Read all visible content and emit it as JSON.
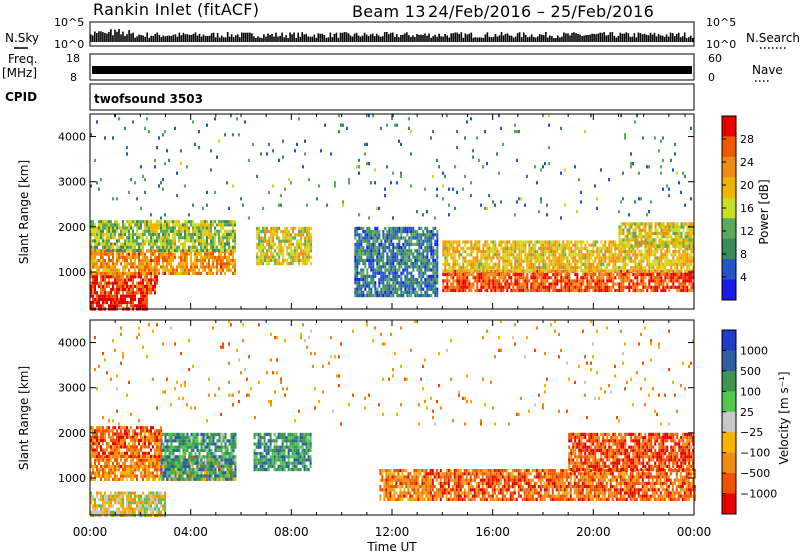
{
  "header": {
    "station": "Rankin Inlet (fitACF)",
    "beam": "Beam 13",
    "date_range": "24/Feb/2016 – 25/Feb/2016"
  },
  "strips": {
    "nsky_label": "N.Sky",
    "nsearch_label": "N.Search",
    "nsky_ticks": [
      "10^5",
      "10^0"
    ],
    "freq_label_1": "Freq.",
    "freq_label_2": "[MHz]",
    "nave_label": "Nave",
    "freq_ticks": [
      "18",
      "8"
    ],
    "nave_ticks": [
      "60",
      "0"
    ],
    "cpid_label": "CPID",
    "cpid_value": "twofsound 3503"
  },
  "chart_data": [
    {
      "type": "heatmap",
      "quantity": "Power",
      "colorbar_label": "Power [dB]",
      "colorbar_ticks": [
        "28",
        "24",
        "20",
        "16",
        "12",
        "8",
        "4"
      ],
      "colorbar_range": [
        0,
        32
      ],
      "colors": [
        "#1a1ae6",
        "#2255c8",
        "#3a8a5a",
        "#5aaa5a",
        "#c8dc28",
        "#f0b400",
        "#f08c14",
        "#ee5a00",
        "#e60000"
      ],
      "ylabel": "Slant Range [km]",
      "y_ticks": [
        "1000",
        "2000",
        "3000",
        "4000"
      ],
      "ylim": [
        180,
        4500
      ],
      "x_range_hours": [
        0,
        24
      ],
      "scatter_regions": [
        {
          "t": [
            0.0,
            2.7
          ],
          "r": [
            550,
            1000
          ],
          "level": 0.85
        },
        {
          "t": [
            0.0,
            5.8
          ],
          "r": [
            1000,
            1500
          ],
          "level": 0.72
        },
        {
          "t": [
            0.0,
            5.8
          ],
          "r": [
            1500,
            2150
          ],
          "level": 0.45
        },
        {
          "t": [
            6.6,
            8.8
          ],
          "r": [
            1200,
            2000
          ],
          "level": 0.55
        },
        {
          "t": [
            0.0,
            2.3
          ],
          "r": [
            180,
            500
          ],
          "level": 0.95
        },
        {
          "t": [
            10.5,
            13.8
          ],
          "r": [
            500,
            2000
          ],
          "level": 0.25
        },
        {
          "t": [
            14.0,
            24.0
          ],
          "r": [
            600,
            1050
          ],
          "level": 0.85
        },
        {
          "t": [
            14.0,
            24.0
          ],
          "r": [
            1050,
            1700
          ],
          "level": 0.6
        },
        {
          "t": [
            21.0,
            24.0
          ],
          "r": [
            1600,
            2100
          ],
          "level": 0.55
        },
        {
          "t": [
            0.0,
            24.0
          ],
          "r": [
            2200,
            4500
          ],
          "level": 0.3
        }
      ]
    },
    {
      "type": "heatmap",
      "quantity": "Velocity",
      "colorbar_label": "Velocity [m s⁻¹]",
      "colorbar_ticks": [
        "1000",
        "500",
        "100",
        "25",
        "−25",
        "−100",
        "−500",
        "−1000"
      ],
      "colors": [
        "#e60000",
        "#f05000",
        "#f08c14",
        "#f5b400",
        "#c8c8c8",
        "#50c850",
        "#3c9650",
        "#2b5fa0",
        "#1e3cc8"
      ],
      "ylabel": "Slant Range [km]",
      "y_ticks": [
        "1000",
        "2000",
        "3000",
        "4000"
      ],
      "ylim": [
        180,
        4500
      ],
      "xlabel": "Time UT",
      "x_ticks": [
        "00:00",
        "04:00",
        "08:00",
        "12:00",
        "16:00",
        "20:00",
        "00:00"
      ],
      "x_range_hours": [
        0,
        24
      ],
      "scatter_regions": [
        {
          "t": [
            0.0,
            5.8
          ],
          "r": [
            1000,
            1500
          ],
          "level": 0.28
        },
        {
          "t": [
            2.8,
            5.8
          ],
          "r": [
            1000,
            2000
          ],
          "level": 0.7
        },
        {
          "t": [
            0.0,
            2.8
          ],
          "r": [
            1500,
            2150
          ],
          "level": 0.2
        },
        {
          "t": [
            6.5,
            8.8
          ],
          "r": [
            1200,
            2000
          ],
          "level": 0.72
        },
        {
          "t": [
            0.0,
            3.0
          ],
          "r": [
            180,
            700
          ],
          "level": 0.45
        },
        {
          "t": [
            11.5,
            13.5
          ],
          "r": [
            500,
            1200
          ],
          "level": 0.25
        },
        {
          "t": [
            13.5,
            24.0
          ],
          "r": [
            500,
            1200
          ],
          "level": 0.2
        },
        {
          "t": [
            19.0,
            24.0
          ],
          "r": [
            1200,
            2000
          ],
          "level": 0.15
        },
        {
          "t": [
            0.0,
            24.0
          ],
          "r": [
            2200,
            4500
          ],
          "level": 0.3
        }
      ]
    }
  ]
}
